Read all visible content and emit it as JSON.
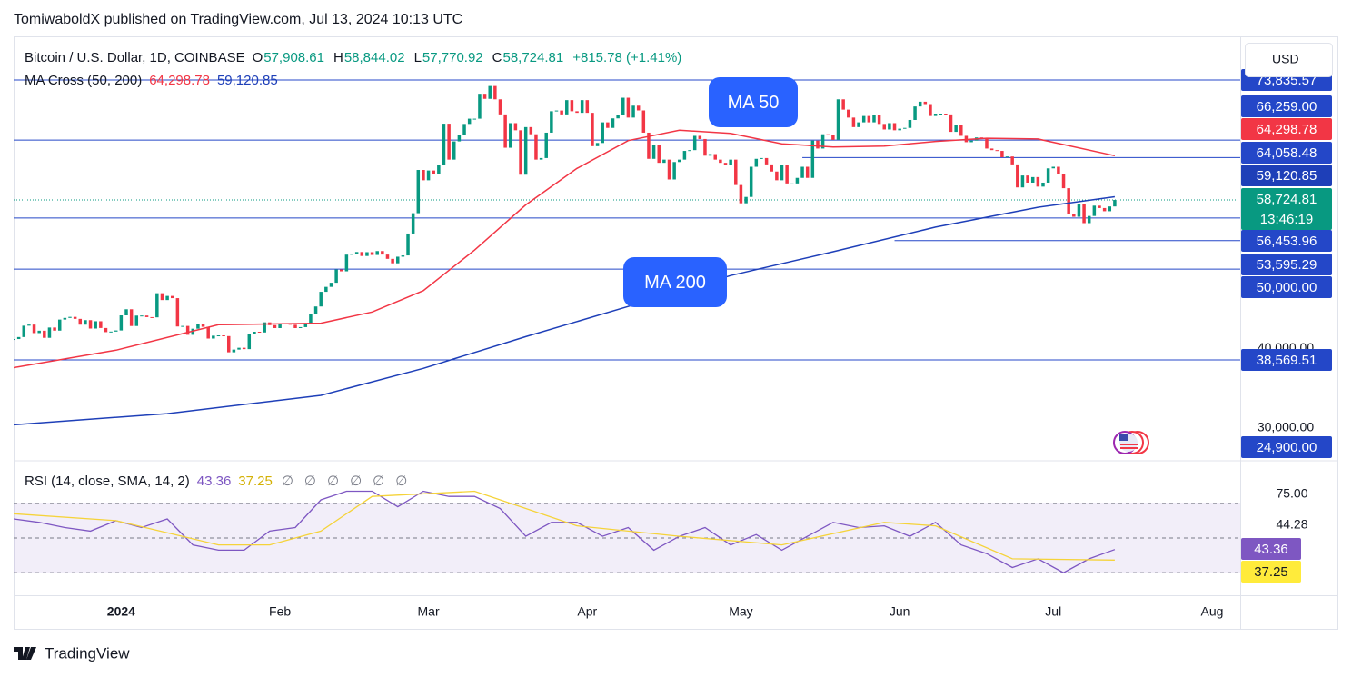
{
  "header": {
    "publisher": "TomiwaboldX published on TradingView.com, Jul 13, 2024 10:13 UTC"
  },
  "footer": {
    "brand": "TradingView"
  },
  "chart_data": {
    "type": "candlestick",
    "symbol": "Bitcoin / U.S. Dollar, 1D, COINBASE",
    "ohlc": [
      [
        "O",
        "57,908.61"
      ],
      [
        "H",
        "58,844.02"
      ],
      [
        "L",
        "57,770.92"
      ],
      [
        "C",
        "58,724.81"
      ]
    ],
    "change": "+815.78 (+1.41%)",
    "ma_legend": "MA Cross (50, 200)",
    "currency": "USD",
    "countdown": "13:46:19",
    "up_color": "#089981",
    "down_color": "#f23645",
    "xlim": [
      0,
      239.5
    ],
    "xticks": [
      {
        "value": 21,
        "label": "2024"
      },
      {
        "value": 52,
        "label": "Feb"
      },
      {
        "value": 81,
        "label": "Mar"
      },
      {
        "value": 112,
        "label": "Apr"
      },
      {
        "value": 142,
        "label": "May"
      },
      {
        "value": 173,
        "label": "Jun"
      },
      {
        "value": 203,
        "label": "Jul"
      },
      {
        "value": 234,
        "label": "Aug"
      }
    ],
    "ylim": [
      26090,
      78760
    ],
    "yticks": [
      {
        "value": 40000,
        "label": "40,000.00"
      },
      {
        "value": 30000,
        "label": "30,000.00"
      }
    ],
    "close": [
      41200,
      41450,
      42880,
      43020,
      41950,
      42250,
      41350,
      42650,
      42260,
      43650,
      43860,
      43990,
      43740,
      43010,
      43580,
      42520,
      43440,
      42590,
      42070,
      42140,
      42280,
      44180,
      44950,
      42840,
      44150,
      44160,
      43960,
      43930,
      46970,
      46110,
      46630,
      46350,
      42780,
      42850,
      41730,
      42500,
      43150,
      42740,
      41260,
      41620,
      41660,
      41570,
      39530,
      39870,
      40100,
      39930,
      41820,
      42120,
      42030,
      43300,
      42950,
      42580,
      43080,
      43190,
      43000,
      42580,
      42700,
      43090,
      44340,
      45300,
      47150,
      47770,
      48290,
      49960,
      49730,
      51830,
      51930,
      52160,
      51660,
      52140,
      51790,
      52280,
      51840,
      51300,
      50740,
      51570,
      51730,
      54490,
      57050,
      62500,
      61200,
      62430,
      61990,
      63140,
      68330,
      63800,
      66100,
      66930,
      68300,
      68960,
      68960,
      72100,
      71460,
      73080,
      71400,
      69500,
      65300,
      68400,
      67500,
      61900,
      67900,
      67000,
      63800,
      64000,
      67200,
      69900,
      69990,
      69500,
      71300,
      69900,
      69700,
      71300,
      69700,
      65500,
      65900,
      68500,
      67800,
      69000,
      69400,
      71600,
      69100,
      70600,
      70000,
      67200,
      63900,
      65700,
      63400,
      63800,
      61300,
      63500,
      63800,
      64900,
      65000,
      66800,
      66400,
      64300,
      64500,
      63800,
      63400,
      63100,
      63800,
      60600,
      58300,
      59100,
      62900,
      63900,
      64000,
      63200,
      62300,
      61200,
      63100,
      60800,
      60800,
      61500,
      62900,
      61500,
      66200,
      65200,
      67000,
      66900,
      66300,
      71400,
      70100,
      69100,
      67900,
      68500,
      69300,
      68500,
      69400,
      68300,
      67600,
      68400,
      67500,
      67700,
      67800,
      68800,
      70500,
      71100,
      70800,
      69300,
      69600,
      69600,
      69500,
      67300,
      68200,
      66800,
      66000,
      66200,
      66600,
      66500,
      65200,
      65000,
      64900,
      64100,
      64200,
      63200,
      60300,
      61800,
      60900,
      61600,
      60400,
      60900,
      62700,
      62900,
      62000,
      60200,
      57000,
      56600,
      58200,
      55800,
      56700,
      58000,
      57700,
      57300,
      57900,
      58724.81
    ],
    "series": [
      {
        "name": "MA 50",
        "color": "#f23645",
        "x": [
          0,
          20,
          40,
          60,
          70,
          80,
          90,
          100,
          110,
          120,
          130,
          140,
          150,
          160,
          170,
          180,
          190,
          200,
          215
        ],
        "values": [
          37600,
          39800,
          43000,
          43200,
          44600,
          47300,
          52400,
          58100,
          62700,
          66200,
          67500,
          67100,
          65800,
          65400,
          65500,
          66100,
          66500,
          66400,
          64298.78
        ]
      },
      {
        "name": "MA 200",
        "color": "#1e3fb8",
        "x": [
          0,
          30,
          60,
          80,
          100,
          120,
          140,
          160,
          180,
          200,
          215
        ],
        "values": [
          30400,
          31800,
          34100,
          37500,
          41500,
          45300,
          49200,
          52200,
          55300,
          57800,
          59120.85
        ]
      }
    ],
    "levels": [
      {
        "value": 73835.57,
        "label": "73,835.57",
        "color": "#2447c8",
        "line": true
      },
      {
        "value": 66259,
        "label": "66,259.00",
        "color": "#2447c8",
        "line": true
      },
      {
        "value": 64298.78,
        "label": "64,298.78",
        "color": "#f23645",
        "line": false
      },
      {
        "value": 64058.48,
        "label": "64,058.48",
        "color": "#2447c8",
        "line": true,
        "start": 154
      },
      {
        "value": 59120.85,
        "label": "59,120.85",
        "color": "#1e3fb8",
        "line": false
      },
      {
        "value": 58724.81,
        "label": "58,724.81",
        "color": "#089981",
        "line": true,
        "dotted": true
      },
      {
        "value": 56453.96,
        "label": "56,453.96",
        "color": "#2447c8",
        "line": true
      },
      {
        "value": 53595.29,
        "label": "53,595.29",
        "color": "#2447c8",
        "line": true,
        "start": 172
      },
      {
        "value": 50000,
        "label": "50,000.00",
        "color": "#2447c8",
        "line": true
      },
      {
        "value": 38569.51,
        "label": "38,569.51",
        "color": "#2447c8",
        "line": true
      },
      {
        "value": 24900,
        "label": "24,900.00",
        "color": "#2447c8",
        "line": true
      }
    ],
    "rsi": {
      "title": "RSI (14, close, SMA, 14, 2)",
      "labels": [
        "43.36",
        "37.25"
      ],
      "markers": [
        "∅",
        "∅",
        "∅",
        "∅",
        "∅",
        "∅"
      ],
      "scale_labels": [
        "75.00",
        "44.28"
      ],
      "ylim": [
        17,
        94
      ],
      "levels": [
        70,
        50,
        30
      ],
      "series": [
        {
          "color": "#7e57c2",
          "x": [
            0,
            5,
            10,
            15,
            20,
            25,
            30,
            35,
            40,
            45,
            50,
            55,
            60,
            65,
            70,
            75,
            80,
            85,
            90,
            95,
            100,
            105,
            110,
            115,
            120,
            125,
            130,
            135,
            140,
            145,
            150,
            155,
            160,
            165,
            170,
            175,
            180,
            185,
            190,
            195,
            200,
            205,
            210,
            215
          ],
          "values": [
            61,
            59,
            56,
            54,
            60,
            56,
            61,
            46,
            43,
            43,
            54,
            56,
            72,
            77,
            77,
            68,
            77,
            74,
            74,
            67,
            51,
            59,
            59,
            51,
            56,
            43,
            51,
            56,
            46,
            52,
            43,
            51,
            59,
            56,
            57,
            51,
            59,
            46,
            41,
            33,
            38,
            30,
            38,
            43.36
          ]
        },
        {
          "color": "#f5d33a",
          "x": [
            0,
            20,
            40,
            50,
            60,
            70,
            90,
            100,
            110,
            130,
            150,
            170,
            180,
            195,
            215
          ],
          "values": [
            64,
            60,
            46,
            46,
            54,
            74,
            77,
            67,
            57,
            51,
            46,
            59,
            57,
            38,
            37.25
          ]
        }
      ]
    }
  }
}
